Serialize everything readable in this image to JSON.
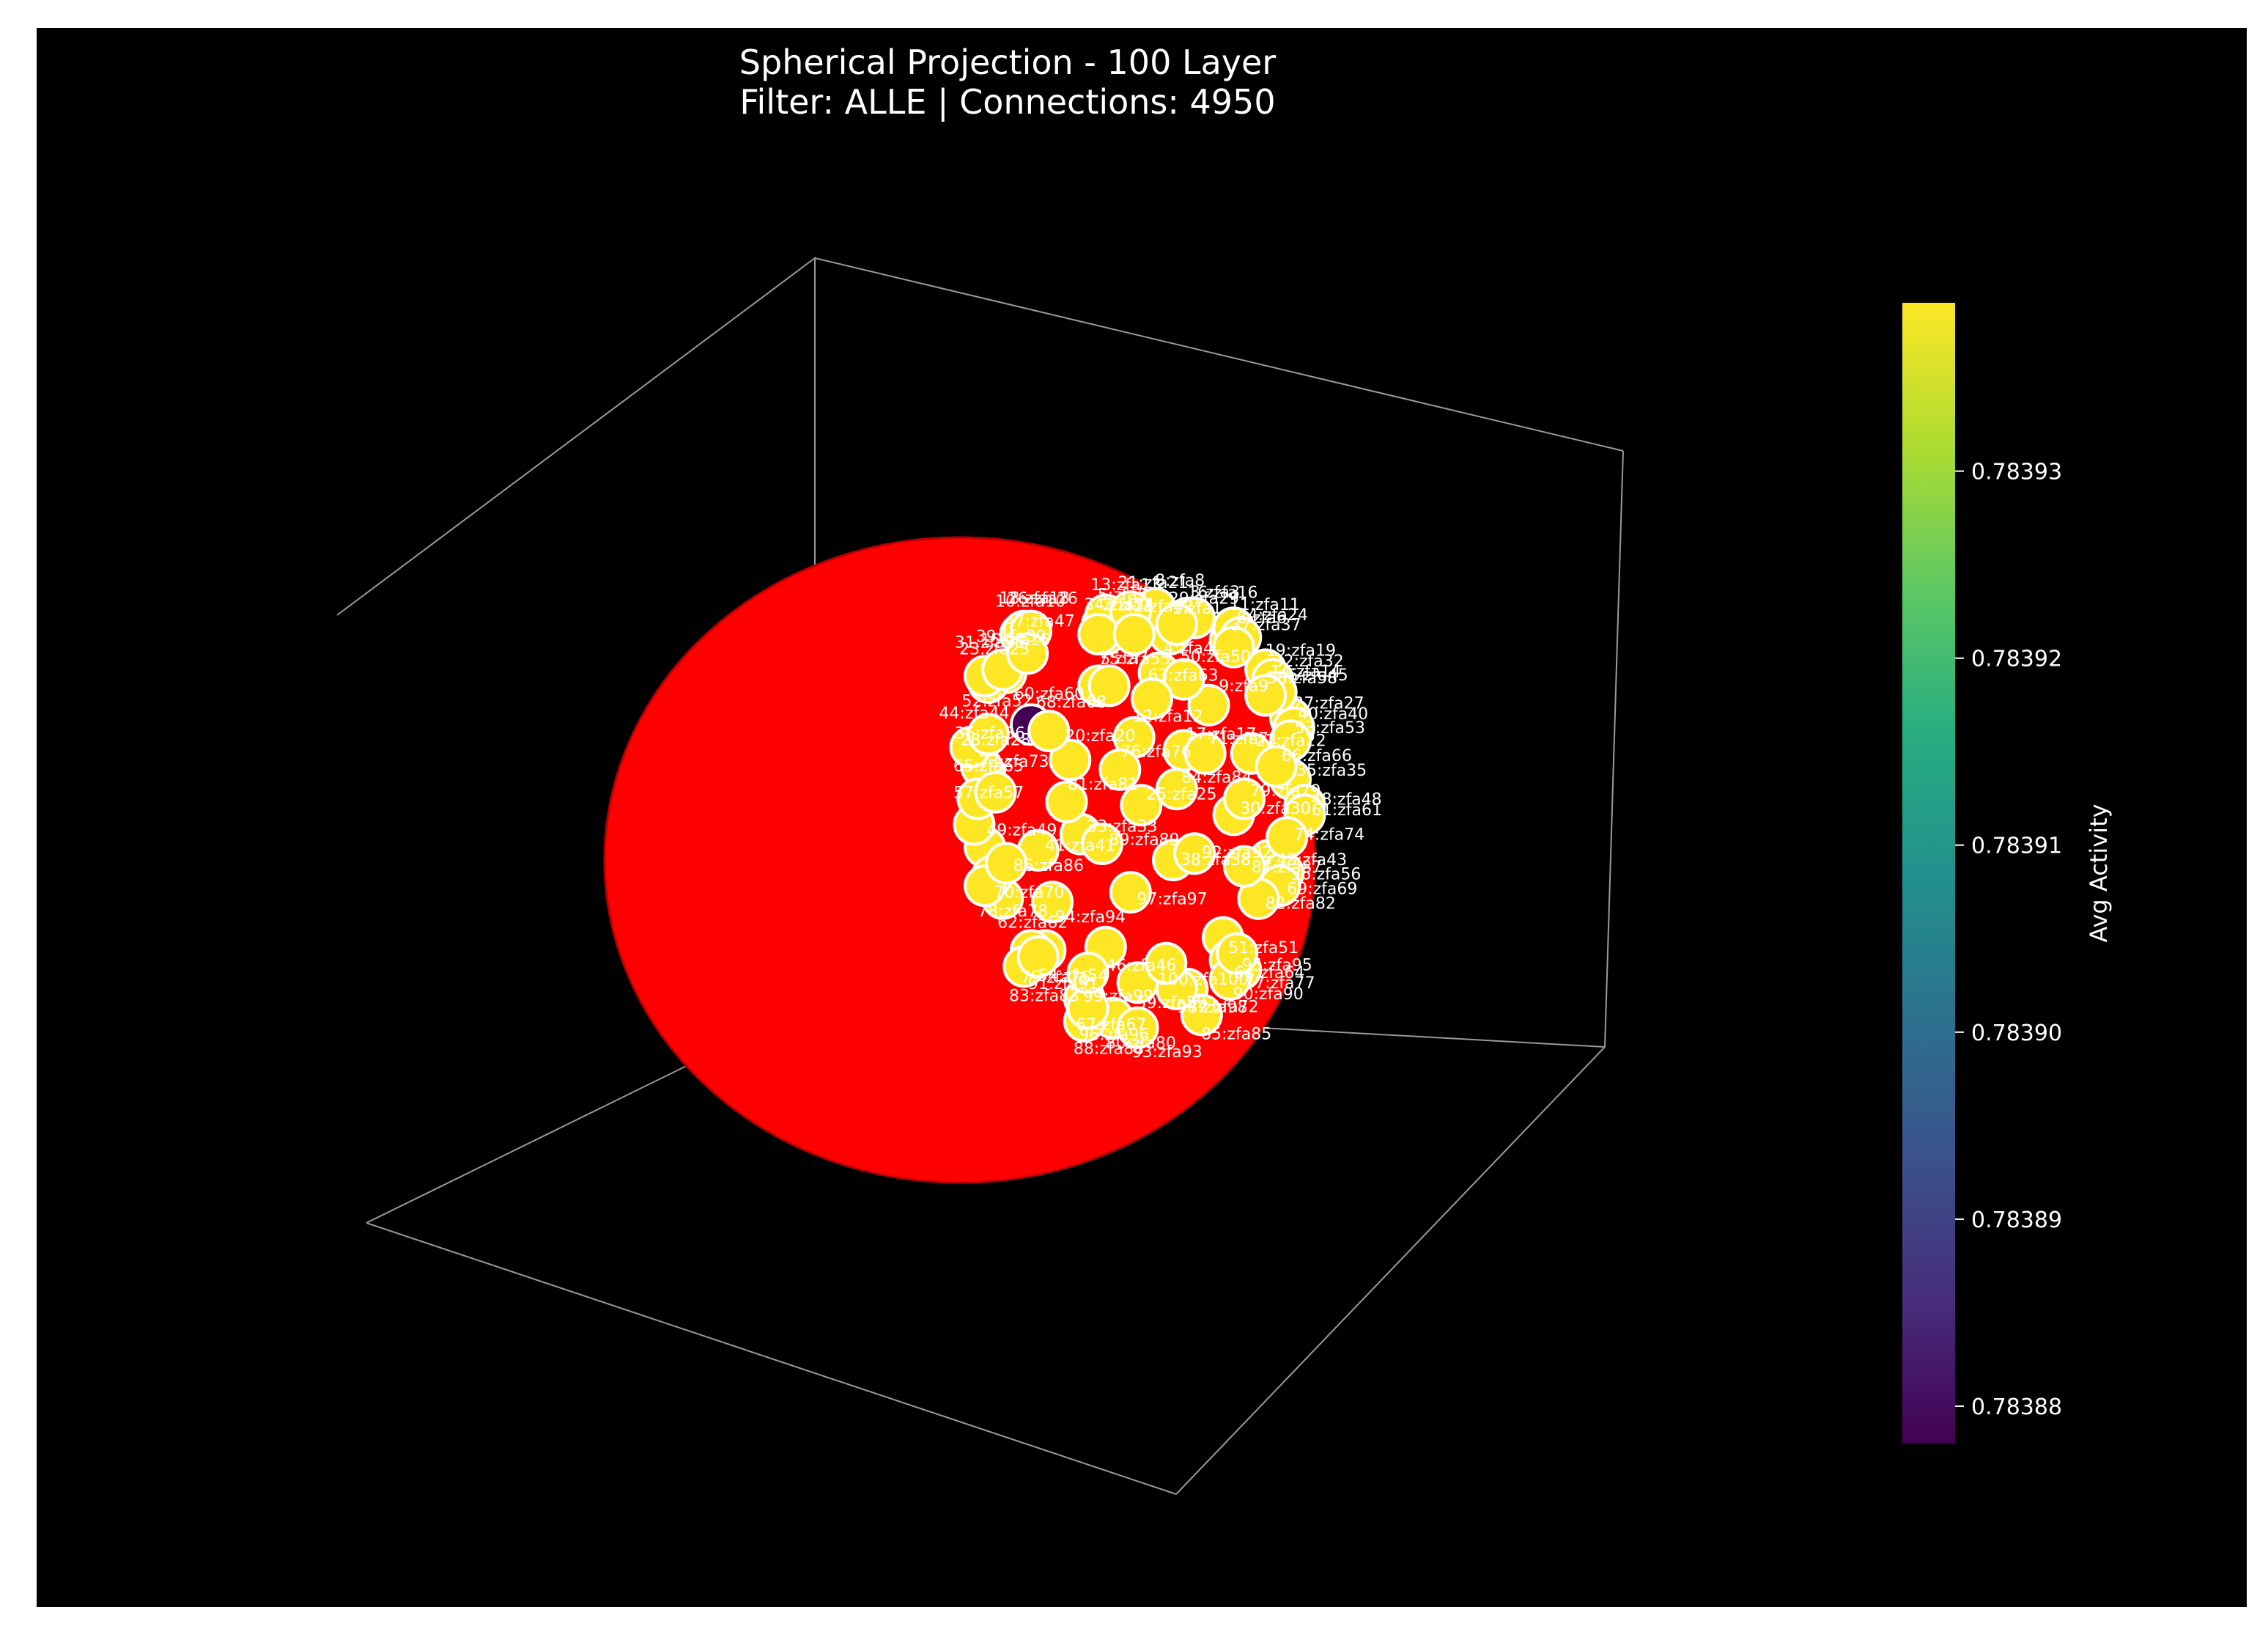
{
  "chart_data": {
    "type": "scatter",
    "projection": "3d",
    "title_line1": "Spherical Projection - 100 Layer",
    "title_line2": "Filter: ALLE | Connections: 4950",
    "background": "#000000",
    "sphere_color": "#ff0000",
    "node_edge_color": "#ffffff",
    "grid": false,
    "colormap": "viridis",
    "colorbar": {
      "label": "Avg Activity",
      "vmin": 0.783878,
      "vmax": 0.783939,
      "ticks": [
        "0.78388",
        "0.78389",
        "0.78390",
        "0.78391",
        "0.78392",
        "0.78393"
      ],
      "tick_values": [
        0.78388,
        0.78389,
        0.7839,
        0.78391,
        0.78392,
        0.78393
      ]
    },
    "nodes": [
      {
        "label": "1:zfa1",
        "x": 0.59,
        "y": 0.7,
        "activity": 0.783939
      },
      {
        "label": "2:zfa2",
        "x": 0.41,
        "y": 0.7,
        "activity": 0.783939
      },
      {
        "label": "3:zfa3",
        "x": 0.64,
        "y": 0.75,
        "activity": 0.783939
      },
      {
        "label": "4:zfa4",
        "x": 0.56,
        "y": 0.58,
        "activity": 0.783939
      },
      {
        "label": "5:zfa5",
        "x": 0.4,
        "y": 0.73,
        "activity": 0.783939
      },
      {
        "label": "6:zfa6",
        "x": 0.76,
        "y": 0.68,
        "activity": 0.783939
      },
      {
        "label": "7:zfa7",
        "x": 0.39,
        "y": 0.54,
        "activity": 0.783939
      },
      {
        "label": "8:zfa8",
        "x": 0.55,
        "y": 0.78,
        "activity": 0.783939
      },
      {
        "label": "9:zfa9",
        "x": 0.7,
        "y": 0.48,
        "activity": 0.783939
      },
      {
        "label": "10:zfa10",
        "x": 0.17,
        "y": 0.7,
        "activity": 0.783939
      },
      {
        "label": "11:zfa11",
        "x": 0.77,
        "y": 0.72,
        "activity": 0.783939
      },
      {
        "label": "12:zfa12",
        "x": 0.49,
        "y": 0.38,
        "activity": 0.783939
      },
      {
        "label": "13:zfa13",
        "x": 0.41,
        "y": 0.76,
        "activity": 0.783939
      },
      {
        "label": "14:zfa14",
        "x": 0.87,
        "y": 0.53,
        "activity": 0.783939
      },
      {
        "label": "15:zfa15",
        "x": 0.13,
        "y": 0.58,
        "activity": 0.783939
      },
      {
        "label": "16:zfa16",
        "x": 0.66,
        "y": 0.75,
        "activity": 0.783939
      },
      {
        "label": "17:zfa17",
        "x": 0.63,
        "y": 0.34,
        "activity": 0.783939
      },
      {
        "label": "18:zfa18",
        "x": 0.18,
        "y": 0.71,
        "activity": 0.783939
      },
      {
        "label": "19:zfa19",
        "x": 0.86,
        "y": 0.59,
        "activity": 0.783939
      },
      {
        "label": "20:zfa20",
        "x": 0.31,
        "y": 0.31,
        "activity": 0.783939
      },
      {
        "label": "21:zfa21",
        "x": 0.48,
        "y": 0.77,
        "activity": 0.783939
      },
      {
        "label": "22:zfa22",
        "x": 0.82,
        "y": 0.33,
        "activity": 0.783939
      },
      {
        "label": "23:zfa23",
        "x": 0.08,
        "y": 0.55,
        "activity": 0.783939
      },
      {
        "label": "24:zfa24",
        "x": 0.79,
        "y": 0.69,
        "activity": 0.783939
      },
      {
        "label": "25:zfa25",
        "x": 0.51,
        "y": 0.17,
        "activity": 0.783939
      },
      {
        "label": "26:zfa26",
        "x": 0.2,
        "y": 0.71,
        "activity": 0.783939
      },
      {
        "label": "27:zfa27",
        "x": 0.93,
        "y": 0.44,
        "activity": 0.783939
      },
      {
        "label": "28:zfa28",
        "x": 0.07,
        "y": 0.27,
        "activity": 0.783939
      },
      {
        "label": "29:zfa29",
        "x": 0.61,
        "y": 0.73,
        "activity": 0.783939
      },
      {
        "label": "30:zfa30",
        "x": 0.77,
        "y": 0.14,
        "activity": 0.783939
      },
      {
        "label": "31:zfa31",
        "x": 0.07,
        "y": 0.57,
        "activity": 0.783939
      },
      {
        "label": "32:zfa32",
        "x": 0.88,
        "y": 0.56,
        "activity": 0.783939
      },
      {
        "label": "33:zfa33",
        "x": 0.34,
        "y": 0.08,
        "activity": 0.783939
      },
      {
        "label": "34:zfa34",
        "x": 0.39,
        "y": 0.7,
        "activity": 0.783939
      },
      {
        "label": "35:zfa35",
        "x": 0.93,
        "y": 0.25,
        "activity": 0.783939
      },
      {
        "label": "36:zfa36",
        "x": 0.06,
        "y": 0.29,
        "activity": 0.783939
      },
      {
        "label": "37:zfa37",
        "x": 0.77,
        "y": 0.66,
        "activity": 0.783939
      },
      {
        "label": "38:zfa38",
        "x": 0.6,
        "y": 0.0,
        "activity": 0.783939
      },
      {
        "label": "39:zfa39",
        "x": 0.12,
        "y": 0.59,
        "activity": 0.783939
      },
      {
        "label": "40:zfa40",
        "x": 0.94,
        "y": 0.41,
        "activity": 0.783939
      },
      {
        "label": "41:zfa41",
        "x": 0.22,
        "y": 0.03,
        "activity": 0.783939
      },
      {
        "label": "42:zfa42",
        "x": 0.49,
        "y": 0.7,
        "activity": 0.783939
      },
      {
        "label": "43:zfa43",
        "x": 0.87,
        "y": 0.0,
        "activity": 0.783939
      },
      {
        "label": "44:zfa44",
        "x": 0.03,
        "y": 0.35,
        "activity": 0.783939
      },
      {
        "label": "45:zfa45",
        "x": 0.89,
        "y": 0.52,
        "activity": 0.783939
      },
      {
        "label": "46:zfa46",
        "x": 0.41,
        "y": -0.27,
        "activity": 0.783939
      },
      {
        "label": "47:zfa47",
        "x": 0.19,
        "y": 0.64,
        "activity": 0.783939
      },
      {
        "label": "48:zfa48",
        "x": 0.97,
        "y": 0.17,
        "activity": 0.783939
      },
      {
        "label": "49:zfa49",
        "x": 0.07,
        "y": 0.04,
        "activity": 0.783939
      },
      {
        "label": "50:zfa50",
        "x": 0.63,
        "y": 0.56,
        "activity": 0.783939
      },
      {
        "label": "51:zfa51",
        "x": 0.74,
        "y": -0.24,
        "activity": 0.783939
      },
      {
        "label": "52:zfa52",
        "x": 0.08,
        "y": 0.39,
        "activity": 0.783939
      },
      {
        "label": "53:zfa53",
        "x": 0.93,
        "y": 0.37,
        "activity": 0.783939
      },
      {
        "label": "54:zfa54",
        "x": 0.24,
        "y": -0.28,
        "activity": 0.783939
      },
      {
        "label": "55:zfa55",
        "x": 0.42,
        "y": 0.54,
        "activity": 0.783939
      },
      {
        "label": "56:zfa56",
        "x": 0.91,
        "y": -0.04,
        "activity": 0.783939
      },
      {
        "label": "57:zfa57",
        "x": 0.04,
        "y": 0.11,
        "activity": 0.783939
      },
      {
        "label": "58:zfa58",
        "x": 0.86,
        "y": 0.51,
        "activity": 0.783939
      },
      {
        "label": "59:zfa59",
        "x": 0.5,
        "y": -0.38,
        "activity": 0.783939
      },
      {
        "label": "60:zfa60",
        "x": 0.2,
        "y": 0.42,
        "activity": 0.783878
      },
      {
        "label": "61:zfa61",
        "x": 0.97,
        "y": 0.14,
        "activity": 0.783939
      },
      {
        "label": "62:zfa62",
        "x": 0.12,
        "y": -0.12,
        "activity": 0.783939
      },
      {
        "label": "63:zfa63",
        "x": 0.54,
        "y": 0.5,
        "activity": 0.783939
      },
      {
        "label": "64:zfa64",
        "x": 0.76,
        "y": -0.31,
        "activity": 0.783939
      },
      {
        "label": "65:zfa65",
        "x": 0.05,
        "y": 0.19,
        "activity": 0.783939
      },
      {
        "label": "66:zfa66",
        "x": 0.89,
        "y": 0.29,
        "activity": 0.783939
      },
      {
        "label": "67:zfa67",
        "x": 0.35,
        "y": -0.43,
        "activity": 0.783939
      },
      {
        "label": "68:zfa68",
        "x": 0.25,
        "y": 0.4,
        "activity": 0.783939
      },
      {
        "label": "69:zfa69",
        "x": 0.9,
        "y": -0.08,
        "activity": 0.783939
      },
      {
        "label": "70:zfa70",
        "x": 0.09,
        "y": -0.05,
        "activity": 0.783939
      },
      {
        "label": "71:zfa71",
        "x": 0.69,
        "y": 0.33,
        "activity": 0.783939
      },
      {
        "label": "72:zfa72",
        "x": 0.64,
        "y": -0.4,
        "activity": 0.783939
      },
      {
        "label": "73:zfa73",
        "x": 0.1,
        "y": 0.21,
        "activity": 0.783939
      },
      {
        "label": "74:zfa74",
        "x": 0.92,
        "y": 0.07,
        "activity": 0.783939
      },
      {
        "label": "75:zfa75",
        "x": 0.2,
        "y": -0.28,
        "activity": 0.783939
      },
      {
        "label": "76:zfa76",
        "x": 0.45,
        "y": 0.28,
        "activity": 0.783939
      },
      {
        "label": "77:zfa77",
        "x": 0.79,
        "y": -0.34,
        "activity": 0.783939
      },
      {
        "label": "78:zfa78",
        "x": 0.07,
        "y": -0.08,
        "activity": 0.783939
      },
      {
        "label": "79:zfa79",
        "x": 0.8,
        "y": 0.19,
        "activity": 0.783939
      },
      {
        "label": "80:zfa80",
        "x": 0.43,
        "y": -0.49,
        "activity": 0.783939
      },
      {
        "label": "81:zfa81",
        "x": 0.3,
        "y": 0.18,
        "activity": 0.783939
      },
      {
        "label": "82:zfa82",
        "x": 0.84,
        "y": -0.12,
        "activity": 0.783939
      },
      {
        "label": "83:zfa83",
        "x": 0.18,
        "y": -0.33,
        "activity": 0.783939
      },
      {
        "label": "84:zfa84",
        "x": 0.61,
        "y": 0.22,
        "activity": 0.783939
      },
      {
        "label": "85:zfa85",
        "x": 0.68,
        "y": -0.48,
        "activity": 0.783939
      },
      {
        "label": "86:zfa86",
        "x": 0.13,
        "y": -0.01,
        "activity": 0.783939
      },
      {
        "label": "87:zfa87",
        "x": 0.8,
        "y": -0.02,
        "activity": 0.783939
      },
      {
        "label": "88:zfa88",
        "x": 0.35,
        "y": -0.5,
        "activity": 0.783939
      },
      {
        "label": "89:zfa89",
        "x": 0.4,
        "y": 0.05,
        "activity": 0.783939
      },
      {
        "label": "90:zfa90",
        "x": 0.76,
        "y": -0.37,
        "activity": 0.783939
      },
      {
        "label": "91:zfa91",
        "x": 0.22,
        "y": -0.3,
        "activity": 0.783939
      },
      {
        "label": "92:zfa92",
        "x": 0.66,
        "y": 0.02,
        "activity": 0.783939
      },
      {
        "label": "93:zfa93",
        "x": 0.5,
        "y": -0.52,
        "activity": 0.783939
      },
      {
        "label": "94:zfa94",
        "x": 0.26,
        "y": -0.13,
        "activity": 0.783939
      },
      {
        "label": "95:zfa95",
        "x": 0.78,
        "y": -0.29,
        "activity": 0.783939
      },
      {
        "label": "96:zfa96",
        "x": 0.36,
        "y": -0.46,
        "activity": 0.783939
      },
      {
        "label": "97:zfa97",
        "x": 0.48,
        "y": -0.1,
        "activity": 0.783939
      },
      {
        "label": "98:zfa98",
        "x": 0.61,
        "y": -0.4,
        "activity": 0.783939
      },
      {
        "label": "99:zfa99",
        "x": 0.36,
        "y": -0.35,
        "activity": 0.783939
      },
      {
        "label": "100:zfa100",
        "x": 0.58,
        "y": -0.32,
        "activity": 0.783939
      }
    ]
  }
}
